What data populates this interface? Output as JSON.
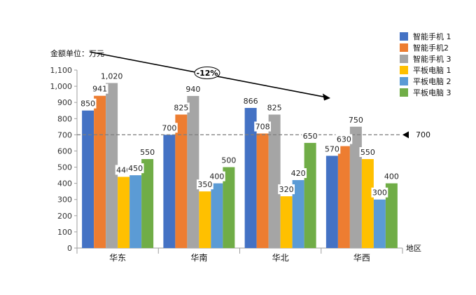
{
  "chart_data": {
    "type": "bar",
    "ylabel": "金额单位：万元",
    "xlabel": "地区",
    "categories": [
      "华东",
      "华南",
      "华北",
      "华西"
    ],
    "ylim": [
      0,
      1100
    ],
    "yticks": [
      "0",
      "100",
      "200",
      "300",
      "400",
      "500",
      "600",
      "700",
      "800",
      "900",
      "1,000",
      "1,100"
    ],
    "series": [
      {
        "name": "智能手机 1",
        "color": "#4472C4",
        "values": [
          850,
          700,
          866,
          570
        ],
        "labels": [
          "850",
          "700",
          "866",
          "570"
        ]
      },
      {
        "name": "智能手机2",
        "color": "#ED7D31",
        "values": [
          941,
          825,
          708,
          630
        ],
        "labels": [
          "941",
          "825",
          "708",
          "630"
        ]
      },
      {
        "name": "智能手机 3",
        "color": "#A5A5A5",
        "values": [
          1020,
          940,
          825,
          750
        ],
        "labels": [
          "1,020",
          "940",
          "825",
          "750"
        ]
      },
      {
        "name": "平板电脑 1",
        "color": "#FFC000",
        "values": [
          440,
          350,
          320,
          550
        ],
        "labels": [
          "440",
          "350",
          "320",
          "550"
        ]
      },
      {
        "name": "平板电脑 2",
        "color": "#5B9BD5",
        "values": [
          450,
          400,
          420,
          300
        ],
        "labels": [
          "450",
          "400",
          "420",
          "300"
        ]
      },
      {
        "name": "平板电脑 3",
        "color": "#70AD47",
        "values": [
          550,
          500,
          650,
          400
        ],
        "labels": [
          "550",
          "500",
          "650",
          "400"
        ]
      }
    ],
    "reference_line": {
      "value": 700,
      "label": "700"
    },
    "trend_annotation": {
      "label": "-12%"
    },
    "grid": false,
    "legend": "right"
  }
}
